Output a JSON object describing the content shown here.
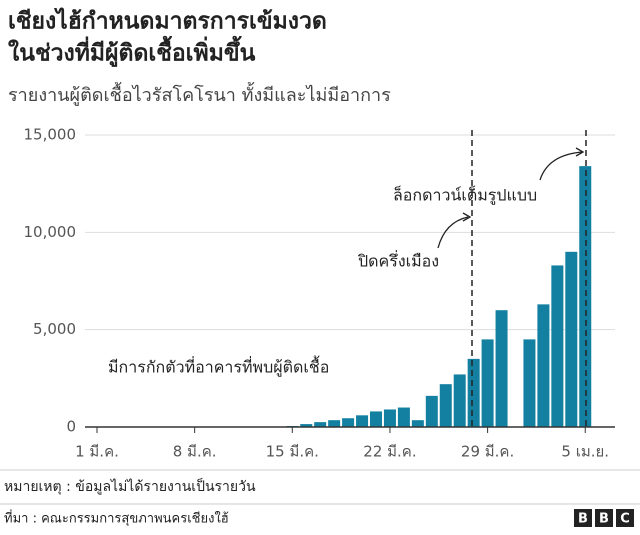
{
  "chart_data": {
    "type": "bar",
    "title": [
      "เชียงไฮ้กำหนดมาตรการเข้มงวด",
      "ในช่วงที่มีผู้ติดเชื้อเพิ่มขึ้น"
    ],
    "subtitle": "รายงานผู้ติดเชื้อไวรัสโคโรนา ทั้งมีและไม่มีอาการ",
    "categories": [
      "1 มี.ค.",
      null,
      null,
      null,
      null,
      null,
      null,
      "8 มี.ค.",
      null,
      null,
      null,
      null,
      null,
      null,
      "15 มี.ค.",
      null,
      null,
      null,
      null,
      null,
      null,
      "22 มี.ค.",
      null,
      null,
      null,
      null,
      null,
      null,
      "29 มี.ค.",
      null,
      null,
      null,
      null,
      null,
      null,
      "5 เม.ย."
    ],
    "values": [
      0,
      0,
      0,
      0,
      0,
      0,
      0,
      0,
      0,
      0,
      0,
      0,
      0,
      0,
      50,
      150,
      250,
      350,
      450,
      600,
      800,
      900,
      1000,
      350,
      1600,
      2200,
      2700,
      3500,
      4500,
      6000,
      null,
      4500,
      6300,
      8300,
      9000,
      13400
    ],
    "color": "#1380a1",
    "ylim": [
      0,
      15000
    ],
    "yticks": [
      0,
      {
        "value": 5000,
        "label": "5,000"
      },
      {
        "value": 10000,
        "label": "10,000"
      },
      {
        "value": 15000,
        "label": "15,000"
      }
    ],
    "grid": true,
    "annotations": [
      "มีการกักตัวที่อาคารที่พบผู้ติดเชื้อ",
      "ปิดครึ่งเมือง",
      "ล็อกดาวน์เต็มรูปแบบ"
    ],
    "note": "หมายเหตุ : ข้อมูลไม่ได้รายงานเป็นรายวัน",
    "source": "ที่มา : คณะกรรมการสุขภาพนครเชียงใฮ้",
    "logo": [
      "B",
      "B",
      "C"
    ]
  }
}
